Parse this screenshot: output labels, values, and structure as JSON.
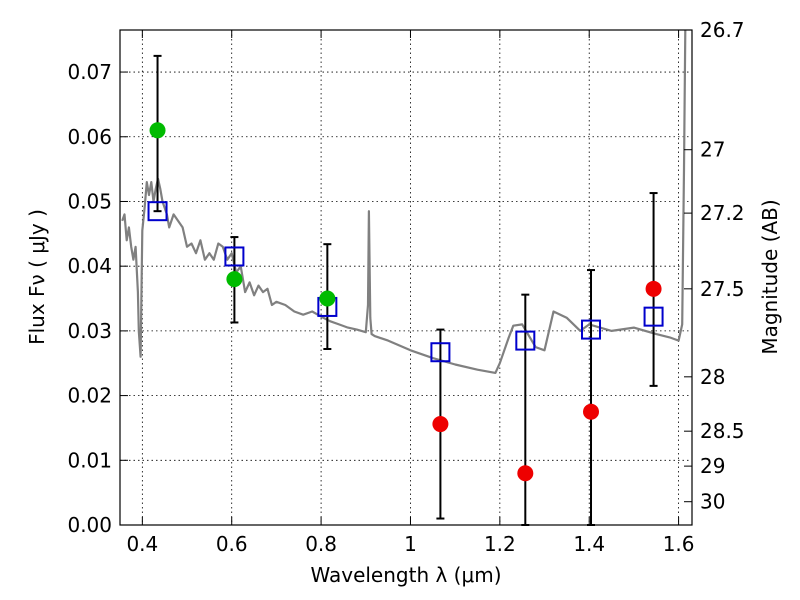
{
  "chart_data": {
    "type": "scatter",
    "xlabel": "Wavelength  λ (μm)",
    "ylabel": "Flux  Fν  ( μJy )",
    "ylabel_right": "Magnitude (AB)",
    "xlim": [
      0.35,
      1.63
    ],
    "ylim": [
      0.0,
      0.0765
    ],
    "x_ticks": [
      0.4,
      0.6,
      0.8,
      1.0,
      1.2,
      1.4,
      1.6
    ],
    "x_tick_labels": [
      "0.4",
      "0.6",
      "0.8",
      "1",
      "1.2",
      "1.4",
      "1.6"
    ],
    "y_ticks": [
      0.0,
      0.01,
      0.02,
      0.03,
      0.04,
      0.05,
      0.06,
      0.07
    ],
    "y_tick_labels": [
      "0.00",
      "0.01",
      "0.02",
      "0.03",
      "0.04",
      "0.05",
      "0.06",
      "0.07"
    ],
    "right_ticks": [
      {
        "label": "26.7",
        "flux": 0.0765
      },
      {
        "label": "27",
        "flux": 0.058
      },
      {
        "label": "27.2",
        "flux": 0.0482
      },
      {
        "label": "27.5",
        "flux": 0.0365
      },
      {
        "label": "28",
        "flux": 0.0229
      },
      {
        "label": "28.5",
        "flux": 0.0145
      },
      {
        "label": "29",
        "flux": 0.0091
      },
      {
        "label": "30",
        "flux": 0.0036
      }
    ],
    "grid": true,
    "series": [
      {
        "marker": "open-square",
        "color": "#0000cc",
        "x": [
          0.434,
          0.606,
          0.814,
          1.067,
          1.257,
          1.404,
          1.544
        ],
        "y": [
          0.0485,
          0.0415,
          0.0337,
          0.0267,
          0.0285,
          0.0302,
          0.0322
        ]
      },
      {
        "marker": "filled-circle",
        "color": "#00bb00",
        "x": [
          0.434,
          0.606,
          0.814
        ],
        "y": [
          0.061,
          0.038,
          0.035
        ]
      },
      {
        "marker": "filled-circle",
        "color": "#ee0000",
        "x": [
          1.067,
          1.257,
          1.404,
          1.544
        ],
        "y": [
          0.0156,
          0.008,
          0.0175,
          0.0365
        ]
      }
    ],
    "error_bars": [
      {
        "x": 0.434,
        "low": 0.0485,
        "high": 0.0725
      },
      {
        "x": 0.606,
        "low": 0.0313,
        "high": 0.0445
      },
      {
        "x": 0.814,
        "low": 0.0272,
        "high": 0.0434
      },
      {
        "x": 1.067,
        "low": 0.001,
        "high": 0.0302
      },
      {
        "x": 1.257,
        "low": 0.0,
        "high": 0.0356
      },
      {
        "x": 1.404,
        "low": 0.0,
        "high": 0.0394
      },
      {
        "x": 1.544,
        "low": 0.0215,
        "high": 0.0513
      }
    ],
    "template_spectrum": {
      "color": "#808080",
      "x": [
        0.355,
        0.36,
        0.365,
        0.37,
        0.375,
        0.38,
        0.385,
        0.39,
        0.392,
        0.396,
        0.4,
        0.405,
        0.41,
        0.415,
        0.42,
        0.425,
        0.43,
        0.435,
        0.44,
        0.445,
        0.45,
        0.455,
        0.46,
        0.47,
        0.48,
        0.49,
        0.5,
        0.51,
        0.52,
        0.53,
        0.54,
        0.55,
        0.56,
        0.57,
        0.58,
        0.59,
        0.6,
        0.61,
        0.62,
        0.63,
        0.64,
        0.65,
        0.66,
        0.67,
        0.68,
        0.69,
        0.7,
        0.72,
        0.74,
        0.76,
        0.78,
        0.8,
        0.82,
        0.84,
        0.86,
        0.88,
        0.9,
        0.905,
        0.907,
        0.91,
        0.913,
        0.92,
        0.95,
        1.0,
        1.05,
        1.1,
        1.15,
        1.19,
        1.2,
        1.22,
        1.23,
        1.25,
        1.28,
        1.3,
        1.32,
        1.35,
        1.38,
        1.4,
        1.45,
        1.5,
        1.55,
        1.58,
        1.6,
        1.608,
        1.612,
        1.615
      ],
      "y": [
        0.047,
        0.048,
        0.044,
        0.046,
        0.043,
        0.041,
        0.043,
        0.036,
        0.03,
        0.026,
        0.0455,
        0.049,
        0.053,
        0.051,
        0.053,
        0.05,
        0.052,
        0.0535,
        0.052,
        0.05,
        0.049,
        0.048,
        0.046,
        0.048,
        0.047,
        0.046,
        0.043,
        0.0435,
        0.042,
        0.044,
        0.041,
        0.042,
        0.041,
        0.0435,
        0.043,
        0.041,
        0.042,
        0.039,
        0.04,
        0.036,
        0.0375,
        0.0355,
        0.037,
        0.036,
        0.0365,
        0.034,
        0.0345,
        0.034,
        0.033,
        0.0325,
        0.033,
        0.0322,
        0.0315,
        0.031,
        0.0305,
        0.0302,
        0.0298,
        0.034,
        0.0485,
        0.032,
        0.0295,
        0.0292,
        0.0285,
        0.027,
        0.0258,
        0.0248,
        0.024,
        0.0235,
        0.025,
        0.029,
        0.0308,
        0.031,
        0.0275,
        0.027,
        0.033,
        0.032,
        0.03,
        0.031,
        0.03,
        0.0305,
        0.0295,
        0.029,
        0.0285,
        0.031,
        0.055,
        0.0765
      ]
    }
  }
}
